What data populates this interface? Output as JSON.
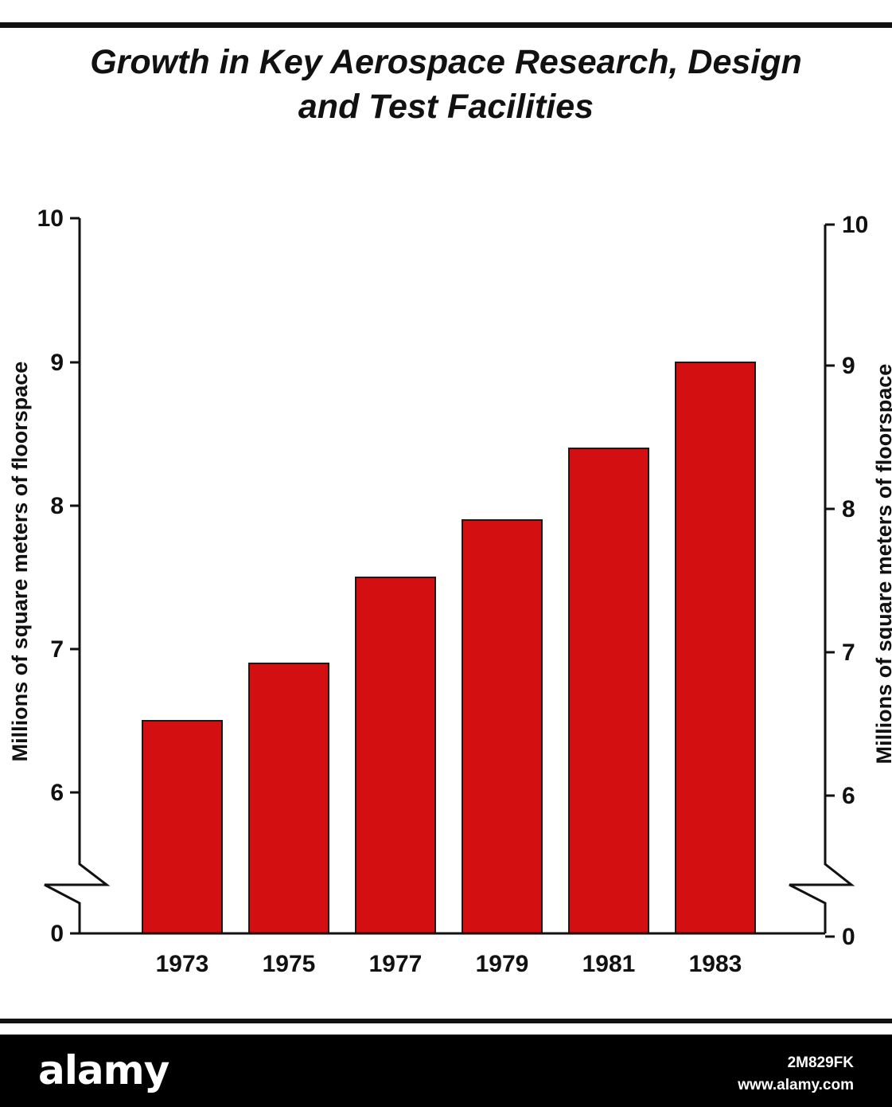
{
  "chart_data": {
    "type": "bar",
    "title": "Growth in Key Aerospace Research, Design and Test Facilities",
    "title_lines": [
      "Growth in Key Aerospace Research, Design",
      "and Test Facilities"
    ],
    "categories": [
      "1973",
      "1975",
      "1977",
      "1979",
      "1981",
      "1983"
    ],
    "values": [
      6.5,
      6.9,
      7.5,
      7.9,
      8.4,
      9.0
    ],
    "ylabel": "Millions of square meters of floorspace",
    "ylabel_right": "Millions of square meters of floorspace",
    "xlabel": "",
    "ylim": [
      0,
      10
    ],
    "axis_break": true,
    "y_ticks": [
      "0",
      "6",
      "7",
      "8",
      "9",
      "10"
    ],
    "grid": false,
    "bar_color": "#d40f12",
    "bar_edge_color": "#1a1a1a"
  },
  "footer": {
    "logo": "alamy",
    "image_id": "2M829FK",
    "site": "www.alamy.com"
  }
}
